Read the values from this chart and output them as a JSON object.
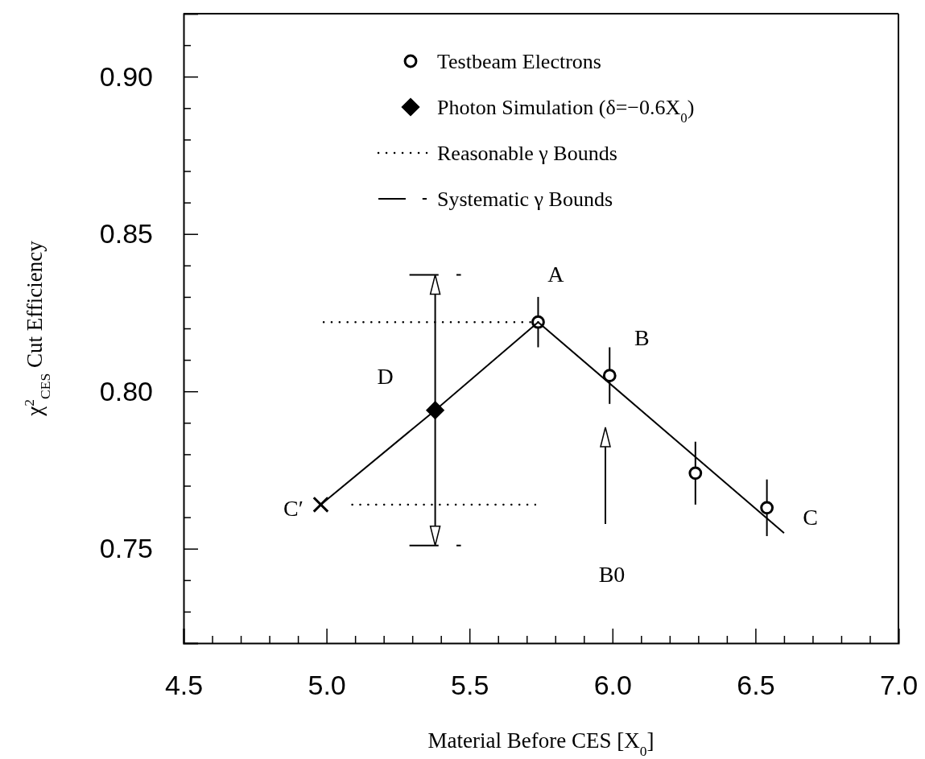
{
  "chart_data": {
    "type": "scatter",
    "xlabel": "Material Before CES [X$_{0}$]",
    "ylabel": "χ$^{2}$$_{CES}$ Cut Efficiency",
    "xlim": [
      4.5,
      7.0
    ],
    "ylim": [
      0.72,
      0.92
    ],
    "xticks": [
      4.5,
      {
        "value": 4.6,
        "label": null
      },
      {
        "value": 4.7,
        "label": null
      },
      {
        "value": 4.8,
        "label": null
      },
      {
        "value": 4.9,
        "label": null
      },
      {
        "value": 5.0,
        "label": "5.0"
      },
      {
        "value": 5.1,
        "label": null
      },
      {
        "value": 5.2,
        "label": null
      },
      {
        "value": 5.3,
        "label": null
      },
      {
        "value": 5.4,
        "label": null
      },
      5.5,
      {
        "value": 5.6,
        "label": null
      },
      {
        "value": 5.7,
        "label": null
      },
      {
        "value": 5.8,
        "label": null
      },
      {
        "value": 5.9,
        "label": null
      },
      {
        "value": 6.0,
        "label": "6.0"
      },
      {
        "value": 6.1,
        "label": null
      },
      {
        "value": 6.2,
        "label": null
      },
      {
        "value": 6.3,
        "label": null
      },
      {
        "value": 6.4,
        "label": null
      },
      6.5,
      {
        "value": 6.6,
        "label": null
      },
      {
        "value": 6.7,
        "label": null
      },
      {
        "value": 6.8,
        "label": null
      },
      {
        "value": 6.9,
        "label": null
      },
      {
        "value": 7.0,
        "label": "7.0"
      }
    ],
    "yticks": [
      {
        "value": 0.73,
        "label": null
      },
      {
        "value": 0.74,
        "label": null
      },
      0.75,
      {
        "value": 0.76,
        "label": null
      },
      {
        "value": 0.77,
        "label": null
      },
      {
        "value": 0.78,
        "label": null
      },
      {
        "value": 0.79,
        "label": null
      },
      {
        "value": 0.8,
        "label": "0.80"
      },
      {
        "value": 0.81,
        "label": null
      },
      {
        "value": 0.82,
        "label": null
      },
      {
        "value": 0.83,
        "label": null
      },
      {
        "value": 0.84,
        "label": null
      },
      0.85,
      {
        "value": 0.86,
        "label": null
      },
      {
        "value": 0.87,
        "label": null
      },
      {
        "value": 0.88,
        "label": null
      },
      {
        "value": 0.89,
        "label": null
      },
      {
        "value": 0.9,
        "label": "0.90"
      },
      {
        "value": 0.91,
        "label": null
      }
    ],
    "grid": false,
    "legend": "top",
    "series": [
      {
        "name": "Testbeam Electrons",
        "color": "#000000",
        "x": [
          5.74,
          5.99,
          6.29,
          6.54
        ],
        "values": [
          0.822,
          0.805,
          0.774,
          0.763
        ],
        "errors": [
          0.008,
          0.009,
          0.01,
          0.009
        ],
        "marker": "circle"
      },
      {
        "name": "Photon Simulation (δ=−0.6X$_{0}$)",
        "color": "#000000",
        "x": [
          5.38
        ],
        "values": [
          0.794
        ],
        "marker": "diamond"
      },
      {
        "color": "#000000",
        "x": [
          4.98
        ],
        "values": [
          0.764
        ],
        "marker": "cross"
      },
      {
        "type": "line",
        "color": "#000000",
        "x": [
          4.98,
          5.38,
          5.74,
          6.6
        ],
        "values": [
          0.764,
          0.794,
          0.822,
          0.755
        ],
        "marker": "none",
        "line_style": "solid"
      },
      {
        "type": "line",
        "name": "Reasonable γ Bounds",
        "color": "#000000",
        "x": [
          4.99,
          5.74
        ],
        "values": [
          0.822,
          0.822
        ],
        "marker": "none",
        "line_style": "dotted"
      },
      {
        "type": "line",
        "color": "#000000",
        "x": [
          5.09,
          5.73
        ],
        "values": [
          0.764,
          0.764
        ],
        "marker": "none",
        "line_style": "dotted"
      },
      {
        "type": "line",
        "name": "Systematic γ Bounds",
        "color": "#000000",
        "x": [
          5.29,
          5.47
        ],
        "values": [
          0.837,
          0.837
        ],
        "marker": "none",
        "line_style": "dashed"
      },
      {
        "type": "line",
        "color": "#000000",
        "x": [
          5.29,
          5.47
        ],
        "values": [
          0.751,
          0.751
        ],
        "marker": "none",
        "line_style": "dashed"
      }
    ],
    "annotations": [
      {
        "text": "A",
        "x": 5.74,
        "y": 0.822
      },
      {
        "text": "B",
        "x": 5.99,
        "y": 0.805
      },
      {
        "text": "C",
        "x": 6.54,
        "y": 0.763
      },
      {
        "text": "C′",
        "x": 4.98,
        "y": 0.764
      },
      {
        "text": "D",
        "x": 5.38,
        "y": 0.794
      },
      "B0"
    ]
  }
}
